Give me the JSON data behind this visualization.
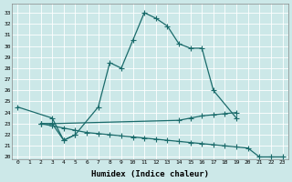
{
  "title": "",
  "xlabel": "Humidex (Indice chaleur)",
  "bg_color": "#cce8e8",
  "line_color": "#1a6b6b",
  "grid_color": "#b0d8d8",
  "xlim": [
    -0.5,
    23.5
  ],
  "ylim": [
    19.8,
    33.8
  ],
  "yticks": [
    20,
    21,
    22,
    23,
    24,
    25,
    26,
    27,
    28,
    29,
    30,
    31,
    32,
    33
  ],
  "xticks": [
    0,
    1,
    2,
    3,
    4,
    5,
    6,
    7,
    8,
    9,
    10,
    11,
    12,
    13,
    14,
    15,
    16,
    17,
    18,
    19,
    20,
    21,
    22,
    23
  ],
  "series": [
    {
      "x": [
        0,
        3,
        4,
        5,
        7,
        8,
        9,
        10,
        11,
        12,
        13,
        14,
        15,
        16,
        17,
        19
      ],
      "y": [
        24.5,
        23.5,
        21.5,
        22.0,
        24.5,
        28.5,
        28.0,
        30.5,
        33.0,
        32.5,
        31.8,
        30.2,
        29.8,
        29.8,
        26.0,
        23.5
      ]
    },
    {
      "x": [
        2,
        3,
        14,
        15,
        16,
        17,
        18,
        19
      ],
      "y": [
        23.0,
        23.0,
        23.3,
        23.5,
        23.7,
        23.8,
        23.9,
        24.0
      ]
    },
    {
      "x": [
        2,
        3,
        4,
        5,
        6,
        7,
        8,
        9,
        10,
        11,
        12,
        13,
        14,
        15,
        16,
        17,
        18,
        19,
        20,
        21,
        22,
        23
      ],
      "y": [
        23.0,
        22.8,
        22.6,
        22.4,
        22.2,
        22.1,
        22.0,
        21.9,
        21.8,
        21.7,
        21.6,
        21.5,
        21.4,
        21.3,
        21.2,
        21.1,
        21.0,
        20.9,
        20.8,
        20.0,
        20.0,
        20.0
      ]
    },
    {
      "x": [
        2,
        3,
        4,
        5
      ],
      "y": [
        23.0,
        23.0,
        21.5,
        22.0
      ]
    }
  ]
}
